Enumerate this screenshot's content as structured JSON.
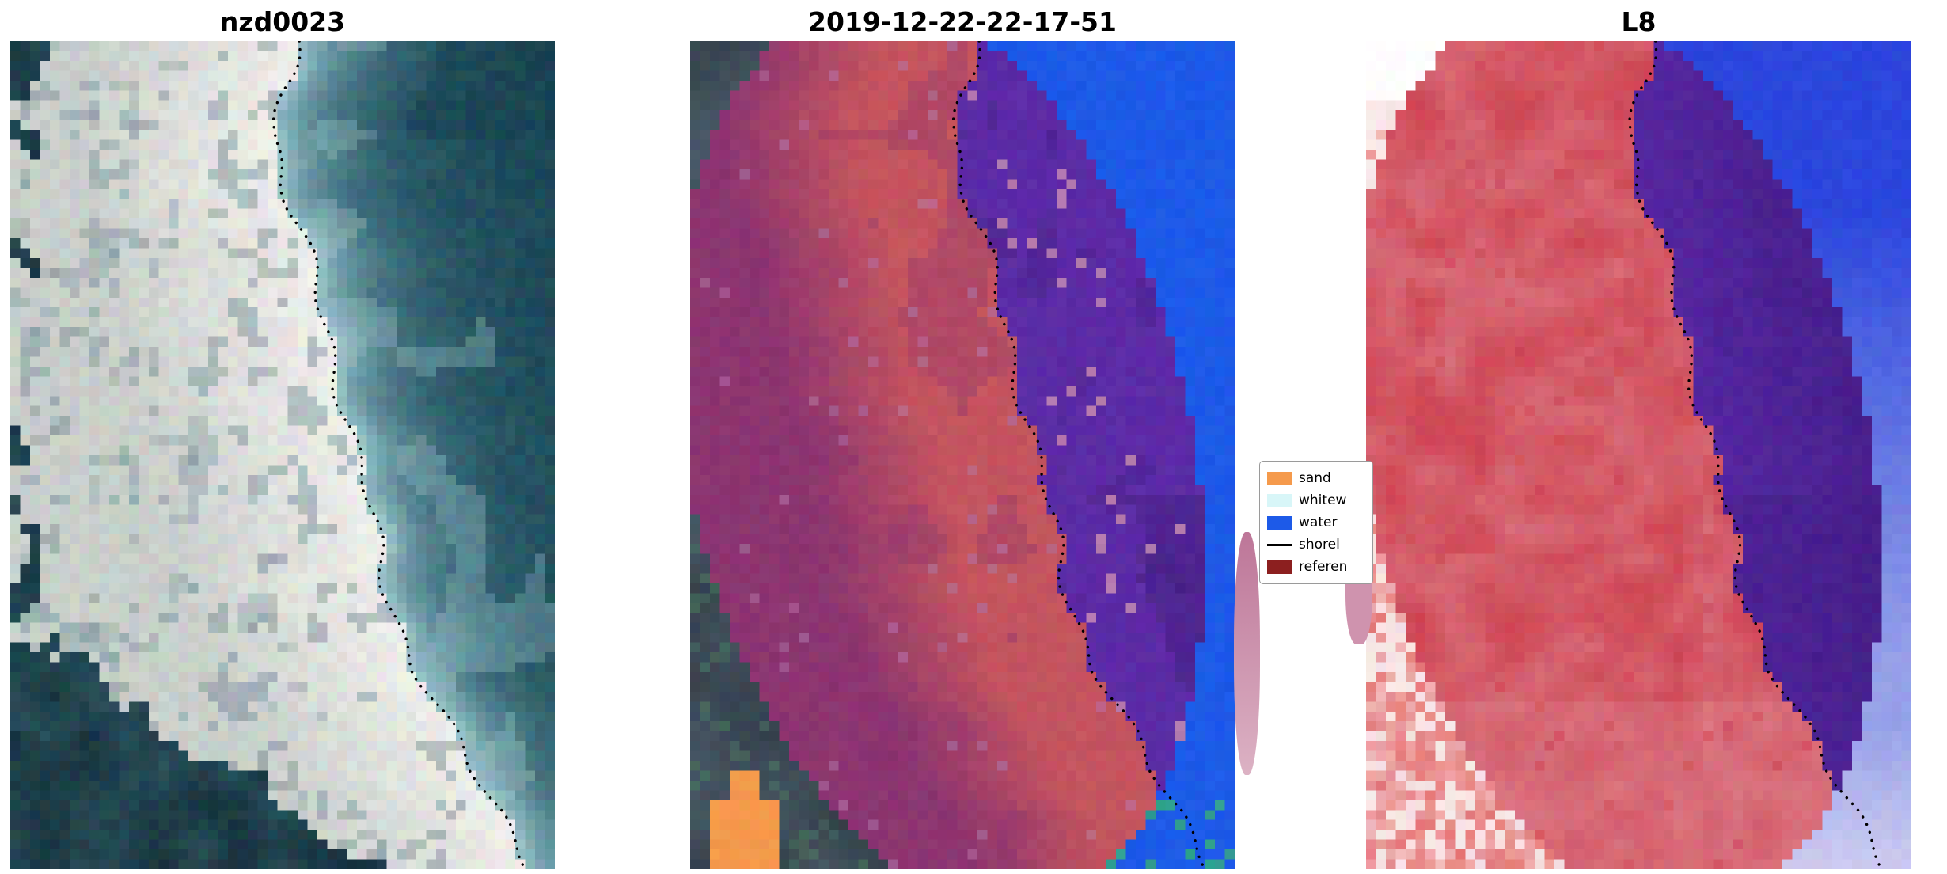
{
  "figure": {
    "background": "#ffffff"
  },
  "panels": [
    {
      "title": "nzd0023"
    },
    {
      "title": "2019-12-22-22-17-51"
    },
    {
      "title": "L8"
    }
  ],
  "legend": {
    "items": [
      {
        "label": "sand",
        "color": "#f59a4c",
        "type": "patch"
      },
      {
        "label": "whitew",
        "color": "#d8f6f8",
        "type": "patch"
      },
      {
        "label": "water",
        "color": "#1d5ae8",
        "type": "patch"
      },
      {
        "label": "shorel",
        "color": "#000000",
        "type": "line"
      },
      {
        "label": "referen",
        "color": "#8c1f1f",
        "type": "patch"
      }
    ]
  },
  "palette": {
    "p1": {
      "water_deep": "#17414f",
      "water_mid": "#2e6273",
      "water_near": "#a8cfd4",
      "beach_white": "#eeeeea",
      "beach_gray": "#c9cfcb",
      "beach_dark": "#7d949b",
      "land": "#16303c",
      "land2": "#2c535e"
    },
    "p2": {
      "slate": "#4a5a68",
      "slate_dark": "#333f49",
      "purple": "#5c2ba6",
      "purple_dark": "#3f1d78",
      "mauve": "#b279ae",
      "salmon": "#c4545f",
      "maroon": "#8c3570",
      "blue": "#1d5ae8",
      "teal": "#2f9d8e",
      "green": "#4c7a62",
      "orange": "#f59a4c"
    },
    "p3": {
      "red": "#cf4553",
      "red_light": "#dd8490",
      "pink_bg": "#f6dede",
      "white": "#fdf8f8",
      "red_noise": "#e26a6a",
      "indigo": "#5526a0",
      "indigo_dark": "#3f1c82",
      "blue": "#2b46dd",
      "blue_light": "#96a0e8",
      "lavender": "#cfccf0"
    },
    "artifact": {
      "left_top": "#bd7698",
      "left_bottom": "#dcb2c4",
      "right": "#cf93ae"
    }
  },
  "chart_data": {
    "type": "heatmap",
    "title": "",
    "panels": [
      {
        "title": "nzd0023",
        "content": "RGB satellite image of a sandy coastline: dark teal ocean on the right, bright white sand beach band in the middle, dark vegetated land in the lower-left and top-left corners, black dotted detected shoreline along the sand/water boundary"
      },
      {
        "title": "2019-12-22-22-17-51",
        "content": "Image classification overlay: water class bright blue outside buffer (top right), semi-transparent dark-red reference shoreline buffer appearing salmon-red over sand and purple over water inside a tilted elliptical region, small orange sand patch lower-left, dark unclassified corners, black dotted shoreline"
      },
      {
        "title": "L8",
        "content": "Landsat 8 spectral index in red-blue diverging colors: land in reds and pinks (left), water in deep indigo inside the buffer and bright-to-light blue outside (right), whitish-pink speckled area lower-left, black dotted shoreline"
      }
    ],
    "legend_entries": [
      "sand",
      "whitew",
      "water",
      "shorel",
      "referen"
    ],
    "shoreline_points_tu": [
      [
        0,
        0.525
      ],
      [
        0.06,
        0.5
      ],
      [
        0.12,
        0.49
      ],
      [
        0.17,
        0.5
      ],
      [
        0.22,
        0.53
      ],
      [
        0.28,
        0.555
      ],
      [
        0.34,
        0.575
      ],
      [
        0.4,
        0.6
      ],
      [
        0.46,
        0.62
      ],
      [
        0.52,
        0.645
      ],
      [
        0.58,
        0.665
      ],
      [
        0.64,
        0.685
      ],
      [
        0.7,
        0.71
      ],
      [
        0.76,
        0.745
      ],
      [
        0.82,
        0.795
      ],
      [
        0.88,
        0.85
      ],
      [
        0.93,
        0.9
      ],
      [
        1,
        0.96
      ]
    ],
    "ellipse": {
      "cx0": 0.46,
      "drift": 0.22,
      "rx": 0.47,
      "ry": 0.545
    }
  }
}
